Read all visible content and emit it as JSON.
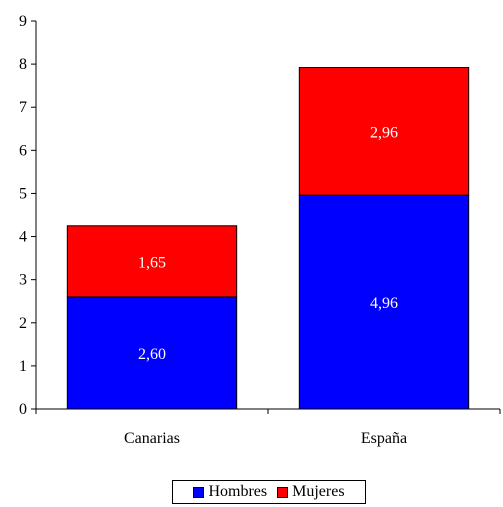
{
  "chart_data": {
    "type": "bar",
    "stacked": true,
    "categories": [
      "Canarias",
      "España"
    ],
    "series": [
      {
        "name": "Hombres",
        "values": [
          2.6,
          4.96
        ],
        "labels": [
          "2,60",
          "4,96"
        ],
        "color": "#0000ff"
      },
      {
        "name": "Mujeres",
        "values": [
          1.65,
          2.96
        ],
        "labels": [
          "1,65",
          "2,96"
        ],
        "color": "#ff0000"
      }
    ],
    "ylim": [
      0,
      9
    ],
    "yticks": [
      "0",
      "1",
      "2",
      "3",
      "4",
      "5",
      "6",
      "7",
      "8",
      "9"
    ],
    "legend_position": "bottom",
    "grid": false
  }
}
